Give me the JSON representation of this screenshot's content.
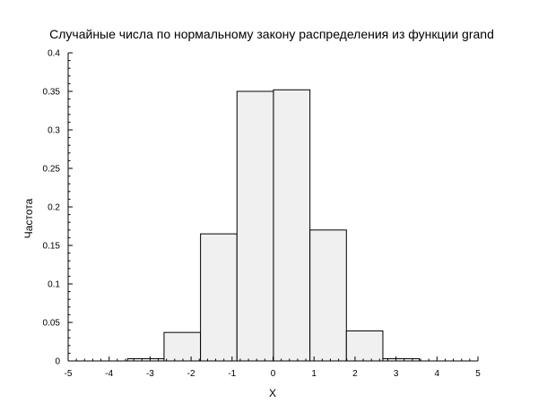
{
  "chart_data": {
    "type": "bar",
    "title": "Случайные числа по нормальному закону распределения из функции grand",
    "xlabel": "X",
    "ylabel": "Частота",
    "xlim": [
      -5,
      5
    ],
    "ylim": [
      0,
      0.4
    ],
    "xticks": [
      "-5",
      "-4",
      "-3",
      "-2",
      "-1",
      "0",
      "1",
      "2",
      "3",
      "4",
      "5"
    ],
    "yticks": [
      "0",
      "0.05",
      "0.1",
      "0.15",
      "0.2",
      "0.25",
      "0.3",
      "0.35",
      "0.4"
    ],
    "bins": [
      {
        "x0": -3.55,
        "x1": -2.66,
        "value": 0.003
      },
      {
        "x0": -2.66,
        "x1": -1.77,
        "value": 0.037
      },
      {
        "x0": -1.77,
        "x1": -0.88,
        "value": 0.165
      },
      {
        "x0": -0.88,
        "x1": 0.01,
        "value": 0.35
      },
      {
        "x0": 0.01,
        "x1": 0.9,
        "value": 0.352
      },
      {
        "x0": 0.9,
        "x1": 1.79,
        "value": 0.17
      },
      {
        "x0": 1.79,
        "x1": 2.68,
        "value": 0.039
      },
      {
        "x0": 2.68,
        "x1": 3.57,
        "value": 0.003
      }
    ],
    "grid": false,
    "legend": "none"
  }
}
